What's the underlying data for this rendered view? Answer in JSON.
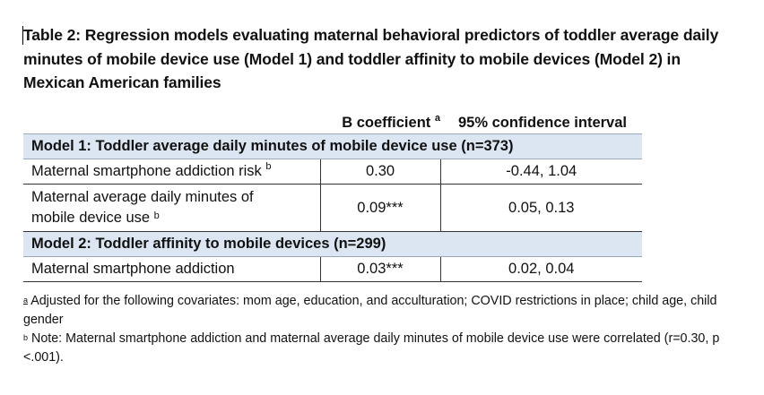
{
  "caption": "Table 2: Regression models evaluating maternal behavioral predictors of toddler average daily minutes of mobile device use (Model 1) and toddler affinity to mobile devices (Model 2) in Mexican American families",
  "table": {
    "col_b": "B coefficient",
    "col_b_sup": "a",
    "col_ci": "95% confidence interval",
    "model1": {
      "title": "Model 1: Toddler average daily minutes of mobile device use (n=373)",
      "rows": [
        {
          "label": "Maternal smartphone addiction risk",
          "label_sup": "b",
          "b": "0.30",
          "ci": "-0.44, 1.04"
        },
        {
          "label_line1": "Maternal average daily minutes of",
          "label_line2": "mobile device use",
          "label_sup": "b",
          "b": "0.09***",
          "ci": "0.05, 0.13"
        }
      ]
    },
    "model2": {
      "title": "Model 2: Toddler affinity to mobile devices (n=299)",
      "rows": [
        {
          "label": "Maternal smartphone addiction",
          "b": "0.03***",
          "ci": "0.02, 0.04"
        }
      ]
    }
  },
  "notes": {
    "a_mark": "a",
    "a_text": " Adjusted for the following covariates: mom age, education, and acculturation; COVID restrictions in place; child age, child gender",
    "b_mark": "b",
    "b_text": " Note: Maternal smartphone addiction and maternal average daily minutes of mobile device use were correlated (r=0.30, p <.001)."
  }
}
